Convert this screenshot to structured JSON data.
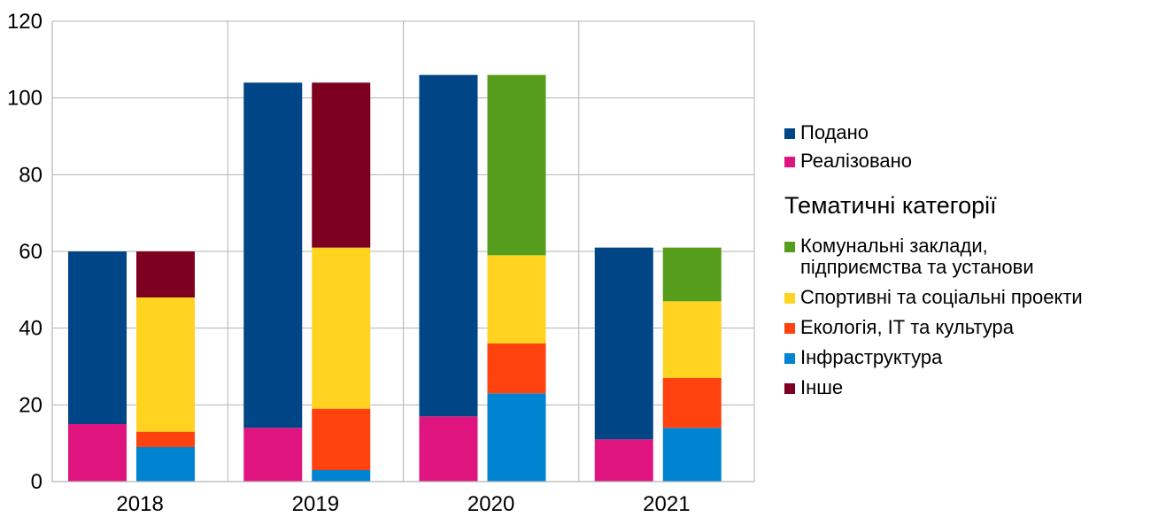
{
  "chart_data": {
    "type": "bar",
    "stacked": true,
    "categories": [
      "2018",
      "2019",
      "2020",
      "2021"
    ],
    "ylim": [
      0,
      120
    ],
    "yticks": [
      "0",
      "20",
      "40",
      "60",
      "80",
      "100",
      "120"
    ],
    "grid": true,
    "legend_position": "right",
    "stacks": [
      {
        "id": "submitted",
        "series": [
          {
            "name": "Реалізовано",
            "color": "#e0147e",
            "values": [
              15,
              14,
              17,
              11
            ]
          },
          {
            "name": "Подано",
            "color": "#004586",
            "values": [
              45,
              90,
              89,
              50
            ]
          }
        ]
      },
      {
        "id": "categories",
        "series": [
          {
            "name": "Інфраструктура",
            "color": "#0084d1",
            "values": [
              9,
              3,
              23,
              14
            ]
          },
          {
            "name": "Екологія, ІТ та культура",
            "color": "#ff420e",
            "values": [
              4,
              16,
              13,
              13
            ]
          },
          {
            "name": "Спортивні та соціальні проекти",
            "color": "#ffd320",
            "values": [
              35,
              42,
              23,
              20
            ]
          },
          {
            "name": "Комунальні заклади,\nпідприємства та установи",
            "color": "#579d1c",
            "values": [
              0,
              0,
              47,
              14
            ]
          },
          {
            "name": "Інше",
            "color": "#7e0021",
            "values": [
              12,
              43,
              0,
              0
            ]
          }
        ]
      }
    ]
  },
  "legend": {
    "top_items": [
      {
        "label": "Подано",
        "color": "#004586"
      },
      {
        "label": "Реалізовано",
        "color": "#e0147e"
      }
    ],
    "header": "Тематичні категорії",
    "category_items": [
      {
        "label": "Комунальні заклади,\nпідприємства та установи",
        "color": "#579d1c"
      },
      {
        "label": "Спортивні та соціальні проекти",
        "color": "#ffd320"
      },
      {
        "label": "Екологія, ІТ та культура",
        "color": "#ff420e"
      },
      {
        "label": "Інфраструктура",
        "color": "#0084d1"
      },
      {
        "label": "Інше",
        "color": "#7e0021"
      }
    ]
  }
}
